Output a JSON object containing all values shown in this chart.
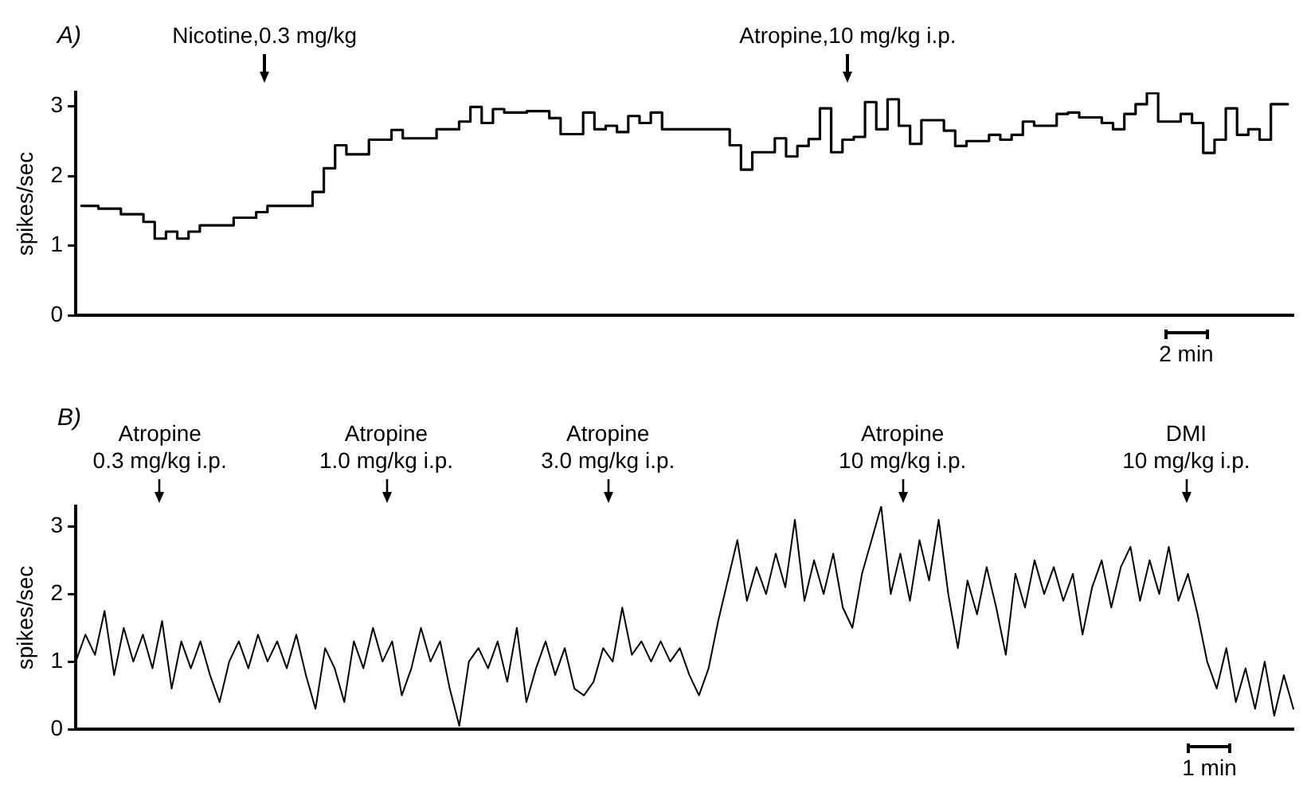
{
  "chart_data": [
    {
      "type": "step",
      "title": "A)",
      "ylabel": "spikes/sec",
      "color": "#000000",
      "ylim": [
        0,
        3.2
      ],
      "yticks": [
        0,
        1,
        2,
        3
      ],
      "tick_labels": "y",
      "grid": false,
      "legend": false,
      "categories": [
        null,
        null,
        null,
        null,
        null,
        null,
        null,
        null,
        null,
        null,
        null,
        null,
        null,
        null,
        null,
        null,
        null,
        null,
        null,
        null,
        null,
        null,
        null,
        null,
        null,
        null,
        null,
        null,
        null,
        null,
        null,
        null,
        null,
        null,
        null,
        null,
        null,
        null,
        null,
        null,
        null,
        null,
        null,
        null,
        null,
        null,
        null,
        null,
        null,
        null,
        null,
        null,
        null,
        null,
        null,
        null,
        null,
        null,
        null,
        null,
        null,
        null,
        null,
        null,
        null,
        null,
        null,
        null,
        null,
        null,
        null,
        null,
        null,
        null,
        null,
        null,
        null,
        null,
        null,
        null,
        null,
        null,
        null,
        null,
        null,
        null,
        null,
        null,
        null,
        null,
        null,
        null,
        null,
        null,
        null,
        null,
        null,
        null,
        null,
        null,
        null,
        null,
        null,
        null,
        null,
        null,
        null,
        null
      ],
      "values": [
        1.57,
        1.57,
        1.53,
        1.53,
        1.45,
        1.45,
        1.34,
        1.1,
        1.2,
        1.1,
        1.2,
        1.29,
        1.29,
        1.29,
        1.4,
        1.4,
        1.48,
        1.57,
        1.57,
        1.57,
        1.57,
        1.77,
        2.11,
        2.44,
        2.31,
        2.31,
        2.52,
        2.52,
        2.66,
        2.54,
        2.54,
        2.54,
        2.67,
        2.67,
        2.78,
        2.99,
        2.76,
        2.96,
        2.91,
        2.91,
        2.93,
        2.93,
        2.83,
        2.6,
        2.6,
        2.91,
        2.67,
        2.72,
        2.63,
        2.86,
        2.76,
        2.91,
        2.67,
        2.67,
        2.67,
        2.67,
        2.67,
        2.67,
        2.44,
        2.09,
        2.34,
        2.34,
        2.54,
        2.28,
        2.43,
        2.53,
        2.97,
        2.34,
        2.52,
        2.56,
        3.06,
        2.67,
        3.1,
        2.72,
        2.46,
        2.8,
        2.8,
        2.65,
        2.43,
        2.5,
        2.5,
        2.59,
        2.52,
        2.59,
        2.78,
        2.72,
        2.72,
        2.89,
        2.91,
        2.84,
        2.84,
        2.76,
        2.67,
        2.89,
        3.03,
        3.19,
        2.78,
        2.78,
        2.89,
        2.76,
        2.33,
        2.52,
        2.97,
        2.59,
        2.67,
        2.52,
        3.03,
        3.03
      ],
      "annotations": [
        "Nicotine,0.3 mg/kg",
        "Atropine,10 mg/kg i.p.",
        "2 min"
      ]
    },
    {
      "type": "line",
      "title": "B)",
      "ylabel": "spikes/sec",
      "color": "#000000",
      "ylim": [
        0,
        3.3
      ],
      "yticks": [
        0,
        1,
        2,
        3
      ],
      "tick_labels": "y",
      "grid": false,
      "legend": false,
      "categories": [
        null,
        null,
        null,
        null,
        null,
        null,
        null,
        null,
        null,
        null,
        null,
        null,
        null,
        null,
        null,
        null,
        null,
        null,
        null,
        null,
        null,
        null,
        null,
        null,
        null,
        null,
        null,
        null,
        null,
        null,
        null,
        null,
        null,
        null,
        null,
        null,
        null,
        null,
        null,
        null,
        null,
        null,
        null,
        null,
        null,
        null,
        null,
        null,
        null,
        null,
        null,
        null,
        null,
        null,
        null,
        null,
        null,
        null,
        null,
        null,
        null,
        null,
        null,
        null,
        null,
        null,
        null,
        null,
        null,
        null,
        null,
        null,
        null,
        null,
        null,
        null,
        null,
        null,
        null,
        null,
        null,
        null,
        null,
        null,
        null,
        null,
        null,
        null,
        null,
        null,
        null,
        null,
        null,
        null,
        null,
        null,
        null,
        null,
        null,
        null,
        null,
        null,
        null,
        null,
        null,
        null,
        null,
        null,
        null,
        null,
        null,
        null,
        null,
        null,
        null,
        null,
        null,
        null,
        null,
        null,
        null,
        null,
        null,
        null,
        null,
        null,
        null,
        null
      ],
      "values": [
        1.0,
        1.4,
        1.1,
        1.75,
        0.8,
        1.5,
        1.0,
        1.4,
        0.9,
        1.6,
        0.6,
        1.3,
        0.9,
        1.3,
        0.8,
        0.4,
        1.0,
        1.3,
        0.9,
        1.4,
        1.0,
        1.3,
        0.9,
        1.4,
        0.8,
        0.3,
        1.2,
        0.9,
        0.4,
        1.3,
        0.9,
        1.5,
        1.0,
        1.3,
        0.5,
        0.9,
        1.5,
        1.0,
        1.3,
        0.6,
        0.05,
        1.0,
        1.2,
        0.9,
        1.3,
        0.7,
        1.5,
        0.4,
        0.9,
        1.3,
        0.8,
        1.2,
        0.6,
        0.5,
        0.7,
        1.2,
        1.0,
        1.8,
        1.1,
        1.3,
        1.0,
        1.3,
        1.0,
        1.2,
        0.8,
        0.5,
        0.9,
        1.6,
        2.2,
        2.8,
        1.9,
        2.4,
        2.0,
        2.6,
        2.1,
        3.1,
        1.9,
        2.5,
        2.0,
        2.6,
        1.8,
        1.5,
        2.3,
        2.8,
        3.3,
        2.0,
        2.6,
        1.9,
        2.8,
        2.2,
        3.1,
        2.0,
        1.2,
        2.2,
        1.7,
        2.4,
        1.8,
        1.1,
        2.3,
        1.8,
        2.5,
        2.0,
        2.4,
        1.9,
        2.3,
        1.4,
        2.1,
        2.5,
        1.8,
        2.4,
        2.7,
        1.9,
        2.5,
        2.0,
        2.7,
        1.9,
        2.3,
        1.7,
        1.0,
        0.6,
        1.2,
        0.4,
        0.9,
        0.3,
        1.0,
        0.2,
        0.8,
        0.3
      ],
      "annotations": [
        "Atropine\n0.3 mg/kg i.p.",
        "Atropine\n1.0 mg/kg i.p.",
        "Atropine\n3.0 mg/kg i.p.",
        "Atropine\n10 mg/kg i.p.",
        "DMI\n10 mg/kg i.p.",
        "1 min"
      ]
    }
  ]
}
